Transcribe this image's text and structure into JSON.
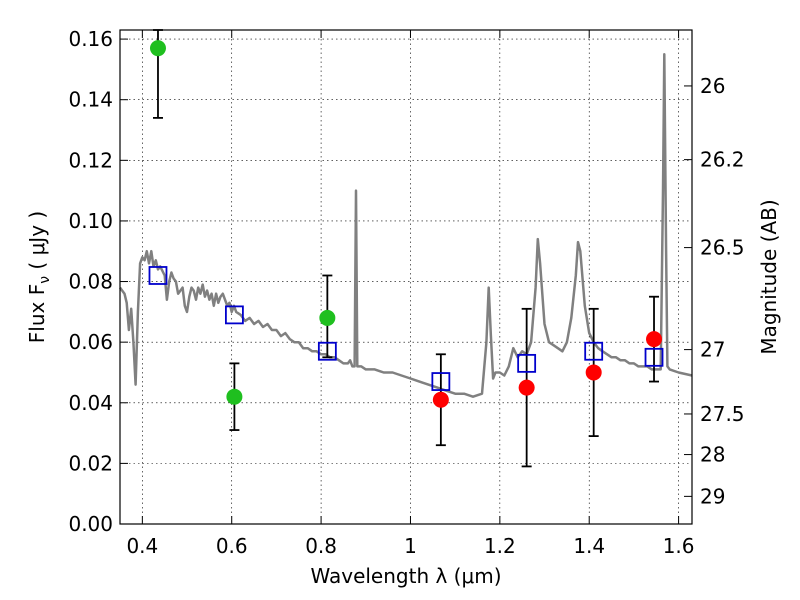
{
  "chart_data": {
    "type": "scatter",
    "title": "",
    "xlabel": "Wavelength  λ (μm)",
    "ylabel": "Flux  F",
    "ylabel_sub": "ν",
    "ylabel_unit": "  ( μJy )",
    "y2label": "Magnitude (AB)",
    "xlim": [
      0.35,
      1.63
    ],
    "ylim": [
      0.0,
      0.163
    ],
    "x_ticks": [
      0.4,
      0.6,
      0.8,
      1.0,
      1.2,
      1.4,
      1.6
    ],
    "x_tick_labels": [
      "0.4",
      "0.6",
      "0.8",
      "1",
      "1.2",
      "1.4",
      "1.6"
    ],
    "y_ticks": [
      0.0,
      0.02,
      0.04,
      0.06,
      0.08,
      0.1,
      0.12,
      0.14,
      0.16
    ],
    "y_tick_labels": [
      "0.00",
      "0.02",
      "0.04",
      "0.06",
      "0.08",
      "0.10",
      "0.12",
      "0.14",
      "0.16"
    ],
    "y2_ticks": [
      26.0,
      26.2,
      26.5,
      27.0,
      27.5,
      28.0,
      29.0
    ],
    "y2_tick_labels": [
      "26",
      "26.2",
      "26.5",
      "27",
      "27.5",
      "28",
      "29"
    ],
    "grid": true,
    "colors": {
      "green": "#1fbf1f",
      "red": "#ff0000",
      "model_box": "#0000cc",
      "spectrum": "#808080"
    },
    "series": [
      {
        "kind": "points-with-errors",
        "color": "green",
        "points": [
          {
            "x": 0.435,
            "y": 0.157,
            "lo": 0.134,
            "hi": 0.163
          },
          {
            "x": 0.606,
            "y": 0.042,
            "lo": 0.031,
            "hi": 0.053
          },
          {
            "x": 0.814,
            "y": 0.068,
            "lo": 0.055,
            "hi": 0.082
          }
        ]
      },
      {
        "kind": "points-with-errors",
        "color": "red",
        "points": [
          {
            "x": 1.068,
            "y": 0.041,
            "lo": 0.026,
            "hi": 0.056
          },
          {
            "x": 1.26,
            "y": 0.045,
            "lo": 0.019,
            "hi": 0.071
          },
          {
            "x": 1.41,
            "y": 0.05,
            "lo": 0.029,
            "hi": 0.071
          },
          {
            "x": 1.545,
            "y": 0.061,
            "lo": 0.047,
            "hi": 0.075
          }
        ]
      },
      {
        "kind": "model-boxes",
        "color": "model_box",
        "points": [
          {
            "x": 0.435,
            "y": 0.082
          },
          {
            "x": 0.606,
            "y": 0.069
          },
          {
            "x": 0.814,
            "y": 0.057
          },
          {
            "x": 1.068,
            "y": 0.047
          },
          {
            "x": 1.26,
            "y": 0.053
          },
          {
            "x": 1.41,
            "y": 0.057
          },
          {
            "x": 1.545,
            "y": 0.055
          }
        ]
      },
      {
        "kind": "spectrum-line",
        "color": "spectrum",
        "points": [
          [
            0.35,
            0.078
          ],
          [
            0.36,
            0.076
          ],
          [
            0.365,
            0.073
          ],
          [
            0.37,
            0.064
          ],
          [
            0.375,
            0.071
          ],
          [
            0.38,
            0.06
          ],
          [
            0.385,
            0.046
          ],
          [
            0.39,
            0.07
          ],
          [
            0.395,
            0.086
          ],
          [
            0.4,
            0.088
          ],
          [
            0.405,
            0.087
          ],
          [
            0.41,
            0.09
          ],
          [
            0.415,
            0.086
          ],
          [
            0.42,
            0.09
          ],
          [
            0.425,
            0.085
          ],
          [
            0.43,
            0.087
          ],
          [
            0.435,
            0.084
          ],
          [
            0.44,
            0.085
          ],
          [
            0.45,
            0.082
          ],
          [
            0.455,
            0.074
          ],
          [
            0.46,
            0.08
          ],
          [
            0.465,
            0.083
          ],
          [
            0.47,
            0.081
          ],
          [
            0.475,
            0.08
          ],
          [
            0.48,
            0.076
          ],
          [
            0.49,
            0.078
          ],
          [
            0.495,
            0.072
          ],
          [
            0.5,
            0.07
          ],
          [
            0.505,
            0.075
          ],
          [
            0.51,
            0.078
          ],
          [
            0.515,
            0.077
          ],
          [
            0.52,
            0.074
          ],
          [
            0.525,
            0.078
          ],
          [
            0.53,
            0.076
          ],
          [
            0.535,
            0.079
          ],
          [
            0.54,
            0.075
          ],
          [
            0.545,
            0.077
          ],
          [
            0.55,
            0.074
          ],
          [
            0.555,
            0.076
          ],
          [
            0.56,
            0.072
          ],
          [
            0.565,
            0.076
          ],
          [
            0.57,
            0.073
          ],
          [
            0.575,
            0.075
          ],
          [
            0.58,
            0.076
          ],
          [
            0.585,
            0.074
          ],
          [
            0.59,
            0.072
          ],
          [
            0.595,
            0.073
          ],
          [
            0.6,
            0.07
          ],
          [
            0.605,
            0.072
          ],
          [
            0.61,
            0.07
          ],
          [
            0.62,
            0.069
          ],
          [
            0.63,
            0.067
          ],
          [
            0.64,
            0.068
          ],
          [
            0.65,
            0.066
          ],
          [
            0.66,
            0.067
          ],
          [
            0.67,
            0.065
          ],
          [
            0.68,
            0.066
          ],
          [
            0.69,
            0.064
          ],
          [
            0.7,
            0.064
          ],
          [
            0.71,
            0.062
          ],
          [
            0.72,
            0.063
          ],
          [
            0.73,
            0.061
          ],
          [
            0.74,
            0.06
          ],
          [
            0.75,
            0.06
          ],
          [
            0.76,
            0.058
          ],
          [
            0.77,
            0.058
          ],
          [
            0.78,
            0.057
          ],
          [
            0.79,
            0.057
          ],
          [
            0.8,
            0.056
          ],
          [
            0.81,
            0.056
          ],
          [
            0.82,
            0.055
          ],
          [
            0.83,
            0.055
          ],
          [
            0.84,
            0.054
          ],
          [
            0.85,
            0.053
          ],
          [
            0.86,
            0.053
          ],
          [
            0.865,
            0.054
          ],
          [
            0.87,
            0.052
          ],
          [
            0.875,
            0.052
          ],
          [
            0.878,
            0.11
          ],
          [
            0.881,
            0.052
          ],
          [
            0.89,
            0.052
          ],
          [
            0.9,
            0.051
          ],
          [
            0.92,
            0.051
          ],
          [
            0.94,
            0.05
          ],
          [
            0.96,
            0.05
          ],
          [
            0.98,
            0.049
          ],
          [
            1.0,
            0.048
          ],
          [
            1.02,
            0.047
          ],
          [
            1.04,
            0.046
          ],
          [
            1.06,
            0.045
          ],
          [
            1.08,
            0.044
          ],
          [
            1.1,
            0.043
          ],
          [
            1.12,
            0.043
          ],
          [
            1.14,
            0.042
          ],
          [
            1.16,
            0.043
          ],
          [
            1.17,
            0.06
          ],
          [
            1.175,
            0.078
          ],
          [
            1.18,
            0.062
          ],
          [
            1.185,
            0.048
          ],
          [
            1.19,
            0.05
          ],
          [
            1.2,
            0.05
          ],
          [
            1.21,
            0.049
          ],
          [
            1.22,
            0.052
          ],
          [
            1.23,
            0.058
          ],
          [
            1.24,
            0.055
          ],
          [
            1.25,
            0.057
          ],
          [
            1.26,
            0.056
          ],
          [
            1.27,
            0.06
          ],
          [
            1.28,
            0.078
          ],
          [
            1.285,
            0.094
          ],
          [
            1.29,
            0.086
          ],
          [
            1.295,
            0.076
          ],
          [
            1.3,
            0.066
          ],
          [
            1.31,
            0.06
          ],
          [
            1.32,
            0.059
          ],
          [
            1.33,
            0.058
          ],
          [
            1.34,
            0.057
          ],
          [
            1.35,
            0.06
          ],
          [
            1.36,
            0.068
          ],
          [
            1.37,
            0.082
          ],
          [
            1.375,
            0.093
          ],
          [
            1.38,
            0.09
          ],
          [
            1.39,
            0.072
          ],
          [
            1.4,
            0.063
          ],
          [
            1.41,
            0.06
          ],
          [
            1.42,
            0.058
          ],
          [
            1.43,
            0.057
          ],
          [
            1.44,
            0.056
          ],
          [
            1.45,
            0.055
          ],
          [
            1.46,
            0.055
          ],
          [
            1.47,
            0.054
          ],
          [
            1.48,
            0.054
          ],
          [
            1.49,
            0.053
          ],
          [
            1.5,
            0.053
          ],
          [
            1.51,
            0.052
          ],
          [
            1.52,
            0.052
          ],
          [
            1.53,
            0.052
          ],
          [
            1.54,
            0.051
          ],
          [
            1.55,
            0.051
          ],
          [
            1.56,
            0.051
          ],
          [
            1.565,
            0.11
          ],
          [
            1.568,
            0.155
          ],
          [
            1.572,
            0.09
          ],
          [
            1.575,
            0.052
          ],
          [
            1.58,
            0.051
          ],
          [
            1.6,
            0.05
          ],
          [
            1.63,
            0.049
          ]
        ]
      }
    ]
  }
}
